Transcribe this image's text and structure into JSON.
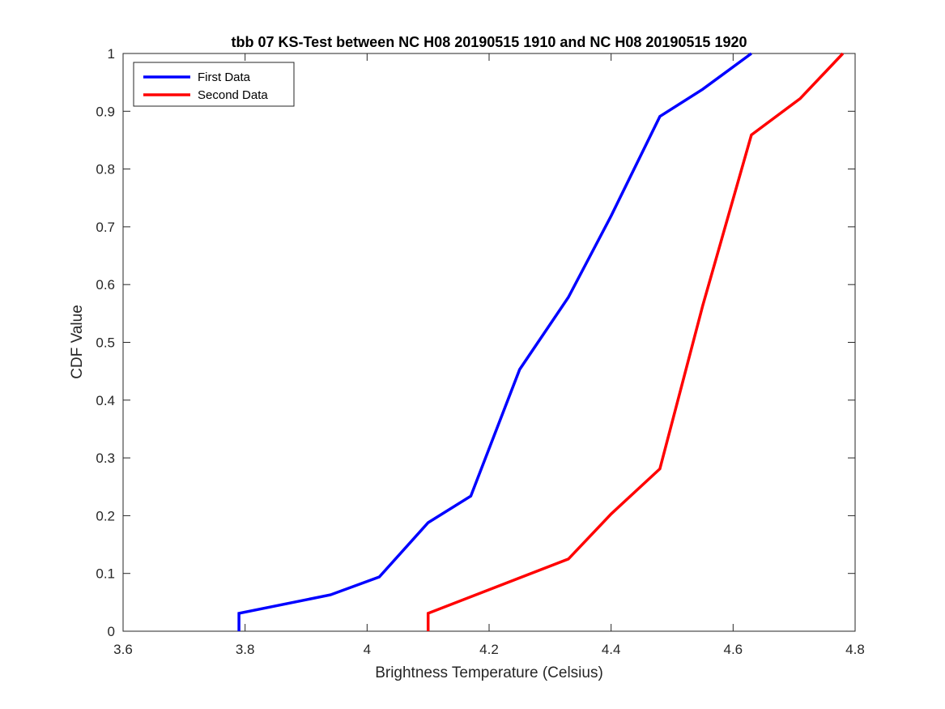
{
  "chart_data": {
    "type": "line",
    "title": "tbb 07 KS-Test between NC H08 20190515 1910 and NC H08 20190515 1920",
    "xlabel": "Brightness Temperature (Celsius)",
    "ylabel": "CDF Value",
    "xlim": [
      3.6,
      4.8
    ],
    "ylim": [
      0,
      1
    ],
    "xticks": [
      3.6,
      3.8,
      4.0,
      4.2,
      4.4,
      4.6,
      4.8
    ],
    "xtick_labels": [
      "3.6",
      "3.8",
      "4",
      "4.2",
      "4.4",
      "4.6",
      "4.8"
    ],
    "yticks": [
      0,
      0.1,
      0.2,
      0.3,
      0.4,
      0.5,
      0.6,
      0.7,
      0.8,
      0.9,
      1
    ],
    "ytick_labels": [
      "0",
      "0.1",
      "0.2",
      "0.3",
      "0.4",
      "0.5",
      "0.6",
      "0.7",
      "0.8",
      "0.9",
      "1"
    ],
    "grid": false,
    "legend_position": "top-left",
    "series": [
      {
        "name": "First Data",
        "color": "#0000ff",
        "x": [
          3.79,
          3.79,
          3.94,
          4.02,
          4.1,
          4.17,
          4.25,
          4.33,
          4.4,
          4.48,
          4.55,
          4.63
        ],
        "y": [
          0,
          0.031,
          0.063,
          0.094,
          0.188,
          0.234,
          0.453,
          0.578,
          0.719,
          0.891,
          0.938,
          1.0
        ]
      },
      {
        "name": "Second Data",
        "color": "#ff0000",
        "x": [
          4.1,
          4.1,
          4.33,
          4.4,
          4.48,
          4.55,
          4.63,
          4.71,
          4.78
        ],
        "y": [
          0,
          0.031,
          0.125,
          0.203,
          0.281,
          0.563,
          0.859,
          0.922,
          1.0
        ]
      }
    ]
  }
}
